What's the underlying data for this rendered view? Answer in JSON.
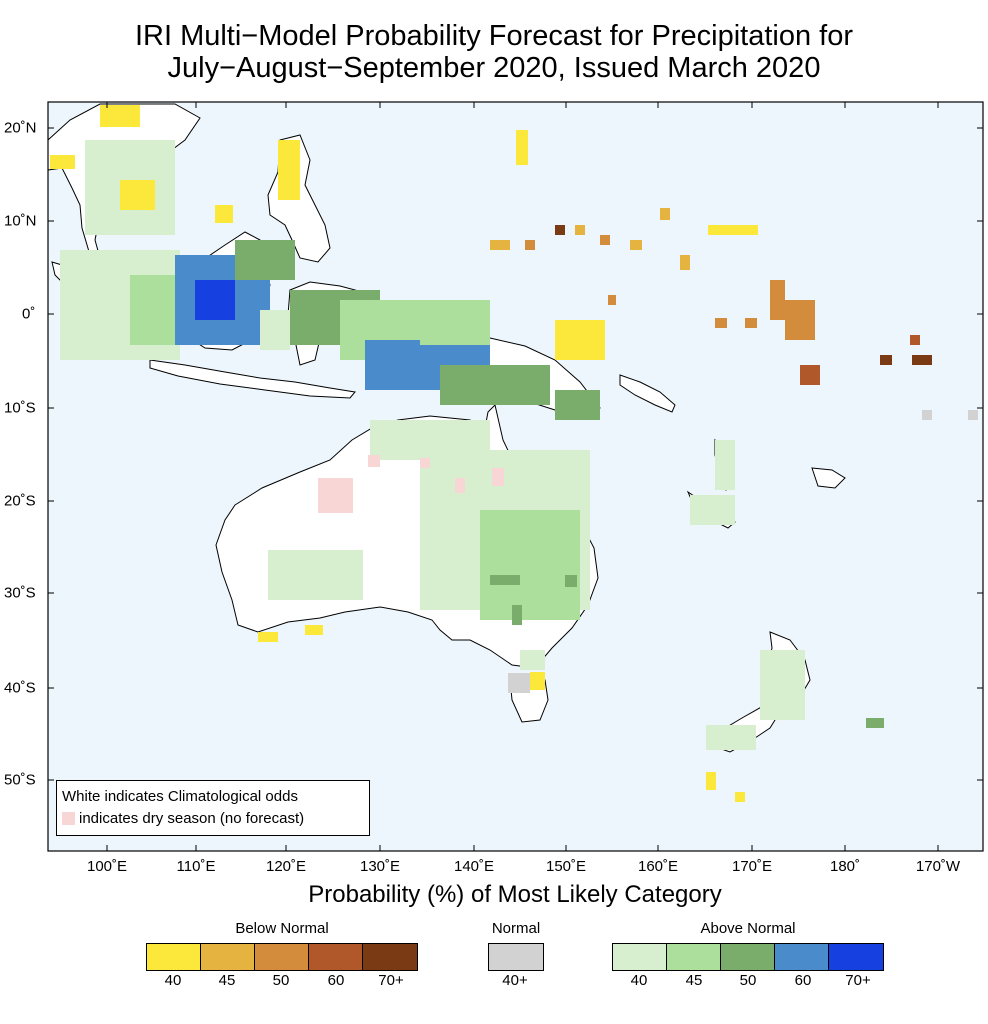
{
  "title": {
    "line1": "IRI Multi−Model Probability Forecast for Precipitation for",
    "line2": "July−August−September 2020, Issued March 2020"
  },
  "map": {
    "ocean_color": "#edf6fc",
    "land_color": "#ffffff",
    "lon_labels": [
      "100˚E",
      "110˚E",
      "120˚E",
      "130˚E",
      "140˚E",
      "150˚E",
      "160˚E",
      "170˚E",
      "180˚",
      "170˚W"
    ],
    "lat_labels": [
      "20˚N",
      "10˚N",
      "0˚",
      "10˚S",
      "20˚S",
      "30˚S",
      "40˚S",
      "50˚S"
    ]
  },
  "inset_legend": {
    "line1": "White indicates Climatological odds",
    "line2": "indicates dry season (no forecast)"
  },
  "colorbar": {
    "title": "Probability (%) of Most Likely Category",
    "groups": [
      {
        "name": "Below Normal",
        "colors": [
          "#fbe83b",
          "#e5b440",
          "#d28c3c",
          "#b0582a",
          "#7a3a14"
        ],
        "labels": [
          "40",
          "45",
          "50",
          "60",
          "70+"
        ]
      },
      {
        "name": "Normal",
        "colors": [
          "#d2d2d2"
        ],
        "labels": [
          "40+"
        ]
      },
      {
        "name": "Above Normal",
        "colors": [
          "#d8efcf",
          "#abdf9b",
          "#7aac6c",
          "#4a8ccb",
          "#1740e0"
        ],
        "labels": [
          "40",
          "45",
          "50",
          "60",
          "70+"
        ]
      }
    ]
  }
}
